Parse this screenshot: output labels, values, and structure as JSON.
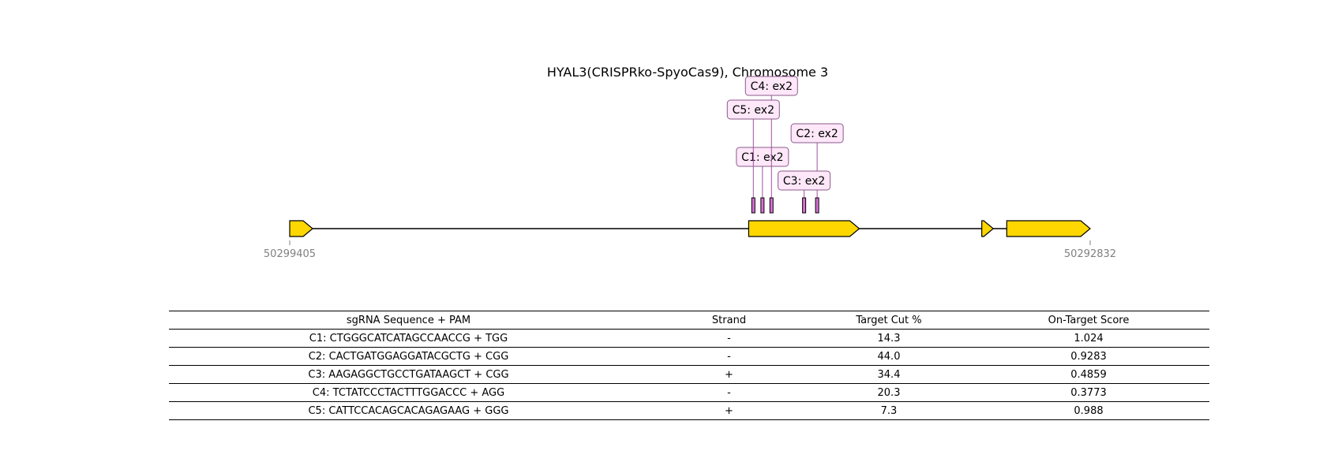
{
  "title": "HYAL3(CRISPRko-SpyoCas9), Chromosome 3",
  "colors": {
    "exon_fill": "#FFD700",
    "guide_fill": "#DA70D6",
    "label_fill": "#FDE7F8",
    "label_border": "#8B5A8B",
    "guide_line": "#A050A0",
    "coord_text": "#808080"
  },
  "gene_map": {
    "start_coordinate": "50299405",
    "end_coordinate": "50292832",
    "exons": [
      {
        "name": "exon-1",
        "start": 50299405,
        "end": 50299217
      },
      {
        "name": "exon-2",
        "start": 50295636,
        "end": 50294728
      },
      {
        "name": "exon-3",
        "start": 50293722,
        "end": 50293628
      },
      {
        "name": "exon-4",
        "start": 50293517,
        "end": 50292832
      }
    ],
    "guides": [
      {
        "id": "C1",
        "label": "C1: ex2",
        "position": 50295523
      },
      {
        "id": "C2",
        "label": "C2: ex2",
        "position": 50295074
      },
      {
        "id": "C3",
        "label": "C3: ex2",
        "position": 50295181
      },
      {
        "id": "C4",
        "label": "C4: ex2",
        "position": 50295449
      },
      {
        "id": "C5",
        "label": "C5: ex2",
        "position": 50295598
      }
    ]
  },
  "table": {
    "headers": [
      "sgRNA Sequence + PAM",
      "Strand",
      "Target Cut %",
      "On-Target Score"
    ],
    "rows": [
      [
        "C1: CTGGGCATCATAGCCAACCG + TGG",
        "-",
        "14.3",
        "1.024"
      ],
      [
        "C2: CACTGATGGAGGATACGCTG + CGG",
        "-",
        "44.0",
        "0.9283"
      ],
      [
        "C3: AAGAGGCTGCCTGATAAGCT + CGG",
        "+",
        "34.4",
        "0.4859"
      ],
      [
        "C4: TCTATCCCTACTTTGGACCC + AGG",
        "-",
        "20.3",
        "0.3773"
      ],
      [
        "C5: CATTCCACAGCACAGAGAAG + GGG",
        "+",
        "7.3",
        "0.988"
      ]
    ]
  }
}
